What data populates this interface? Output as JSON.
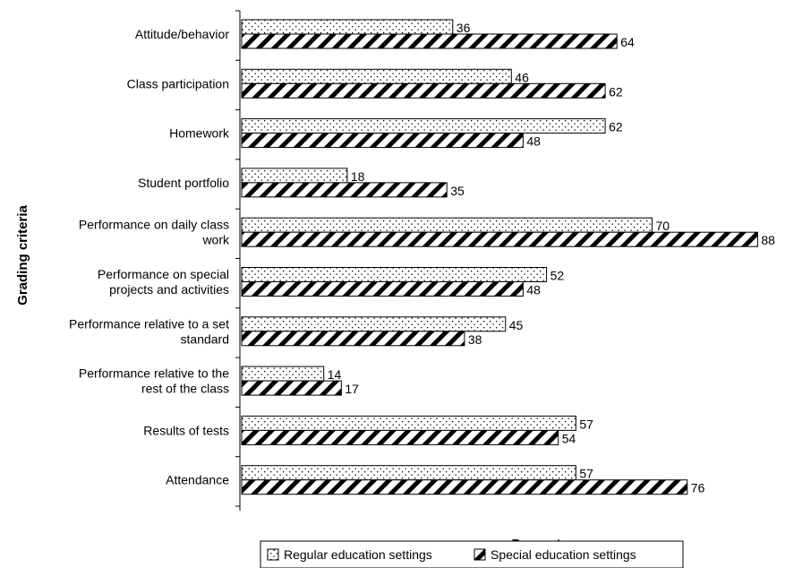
{
  "chart_data": {
    "type": "bar",
    "orientation": "horizontal",
    "ylabel": "Grading criteria",
    "xlabel": "Percent",
    "xlim": [
      0,
      100
    ],
    "grid": false,
    "legend_position": "bottom",
    "categories": [
      [
        "Attitude/behavior"
      ],
      [
        "Class participation"
      ],
      [
        "Homework"
      ],
      [
        "Student portfolio"
      ],
      [
        "Performance on daily class",
        "work"
      ],
      [
        "Performance on special",
        "projects and activities"
      ],
      [
        "Performance relative to a set",
        "standard"
      ],
      [
        "Performance relative to the",
        "rest of the class"
      ],
      [
        "Results of tests"
      ],
      [
        "Attendance"
      ]
    ],
    "series": [
      {
        "name": "Regular education settings",
        "pattern": "dots",
        "values": [
          36,
          46,
          62,
          18,
          70,
          52,
          45,
          14,
          57,
          57
        ]
      },
      {
        "name": "Special education settings",
        "pattern": "diagonal",
        "values": [
          64,
          62,
          48,
          35,
          88,
          48,
          38,
          17,
          54,
          76
        ]
      }
    ]
  }
}
